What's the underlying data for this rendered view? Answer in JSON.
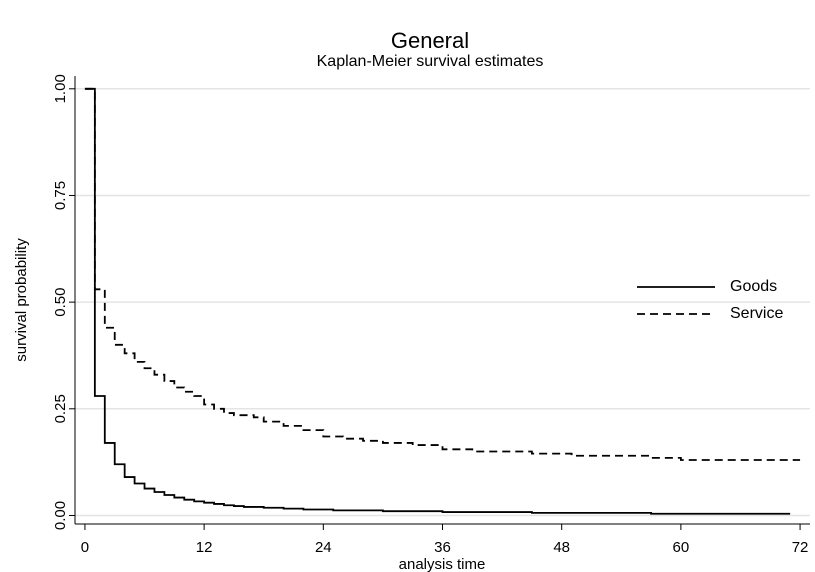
{
  "chart_data": {
    "type": "step",
    "title": "General",
    "subtitle": "Kaplan-Meier survival estimates",
    "x_label": "analysis time",
    "y_label": "survival probability",
    "xlim": [
      -1,
      73
    ],
    "ylim": [
      -0.02,
      1.03
    ],
    "xticks": [
      0,
      12,
      24,
      36,
      48,
      60,
      72
    ],
    "yticks": [
      {
        "value": 0,
        "label": "0.00"
      },
      {
        "value": 0.25,
        "label": "0.25"
      },
      {
        "value": 0.5,
        "label": "0.50"
      },
      {
        "value": 0.75,
        "label": "0.75"
      },
      {
        "value": 1,
        "label": "1.00"
      }
    ],
    "grid": true,
    "legend": "right",
    "series": [
      {
        "name": "Goods",
        "color": "#000000",
        "dash": "solid",
        "x": [
          0,
          1,
          2,
          3,
          4,
          5,
          6,
          7,
          8,
          9,
          10,
          11,
          12,
          13,
          14,
          15,
          16,
          18,
          20,
          22,
          25,
          30,
          36,
          45,
          57,
          71
        ],
        "values": [
          1,
          0.28,
          0.17,
          0.12,
          0.09,
          0.075,
          0.063,
          0.055,
          0.048,
          0.042,
          0.037,
          0.033,
          0.03,
          0.027,
          0.024,
          0.022,
          0.02,
          0.018,
          0.016,
          0.014,
          0.012,
          0.01,
          0.008,
          0.006,
          0.004,
          0.004
        ]
      },
      {
        "name": "Service",
        "color": "#000000",
        "dash": "dashed",
        "x": [
          0,
          1,
          2,
          3,
          4,
          5,
          6,
          7,
          8,
          9,
          10,
          11,
          12,
          13,
          14,
          15,
          17,
          18,
          20,
          22,
          24,
          26,
          28,
          30,
          33,
          36,
          39,
          45,
          49,
          57,
          60,
          72
        ],
        "values": [
          1,
          0.53,
          0.44,
          0.4,
          0.38,
          0.36,
          0.345,
          0.33,
          0.315,
          0.3,
          0.29,
          0.28,
          0.26,
          0.25,
          0.24,
          0.235,
          0.23,
          0.22,
          0.21,
          0.2,
          0.185,
          0.18,
          0.175,
          0.17,
          0.165,
          0.155,
          0.15,
          0.145,
          0.14,
          0.135,
          0.13,
          0.13
        ]
      }
    ]
  }
}
